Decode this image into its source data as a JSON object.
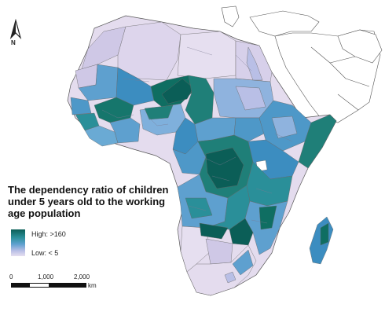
{
  "map": {
    "title": "The dependency ratio of children under 5 years old to the working age population",
    "north_label": "N",
    "legend": {
      "high_label": "High:",
      "high_value": ">160",
      "low_label": "Low:",
      "low_value": "< 5",
      "colors": [
        "#0b5e57",
        "#2a8f99",
        "#5ea0cf",
        "#b9bfe6",
        "#e6dff0"
      ]
    },
    "scale": {
      "ticks": [
        "0",
        "1,000",
        "2,000"
      ],
      "unit": "km"
    },
    "colors": {
      "background": "#ffffff",
      "no_data_land": "#ffffff",
      "border_stroke": "#555555"
    }
  }
}
